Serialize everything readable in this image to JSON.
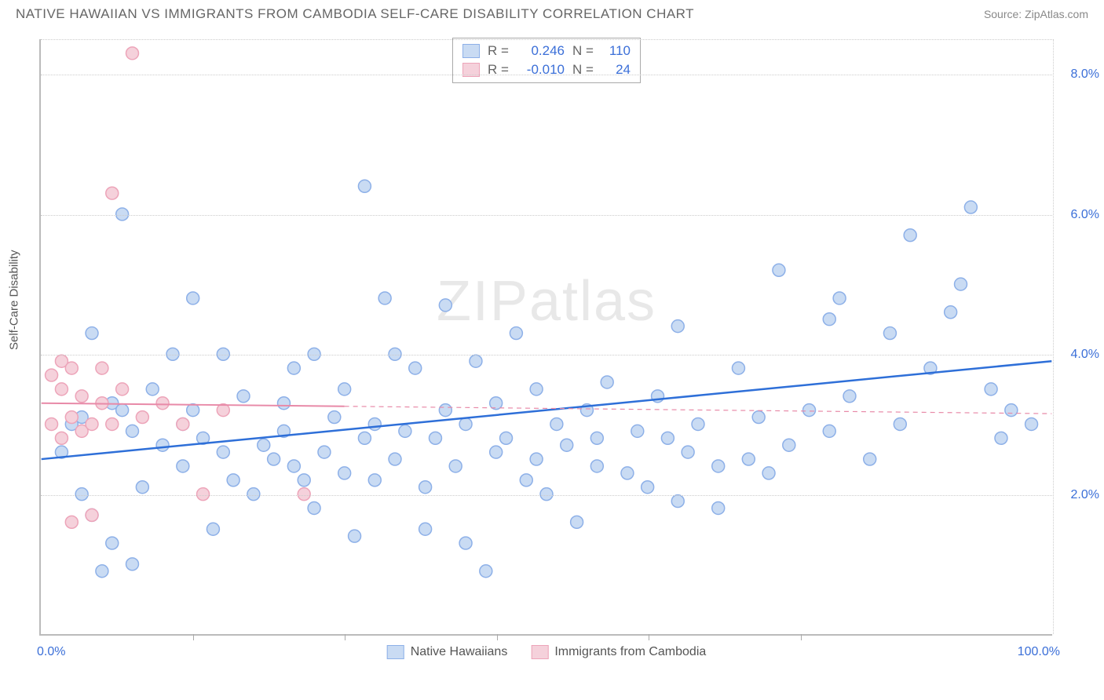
{
  "header": {
    "title": "NATIVE HAWAIIAN VS IMMIGRANTS FROM CAMBODIA SELF-CARE DISABILITY CORRELATION CHART",
    "source_label": "Source:",
    "source_name": "ZipAtlas.com"
  },
  "watermark": {
    "part1": "ZIP",
    "part2": "atlas"
  },
  "chart": {
    "type": "scatter",
    "ylabel": "Self-Care Disability",
    "xlim": [
      0,
      100
    ],
    "ylim": [
      0,
      8.5
    ],
    "xticks_label_left": "0.0%",
    "xticks_label_right": "100.0%",
    "yticks": [
      {
        "v": 2.0,
        "label": "2.0%"
      },
      {
        "v": 4.0,
        "label": "4.0%"
      },
      {
        "v": 6.0,
        "label": "6.0%"
      },
      {
        "v": 8.0,
        "label": "8.0%"
      }
    ],
    "vtick_positions": [
      15,
      30,
      45,
      60,
      75
    ],
    "grid_color": "#cccccc",
    "background_color": "#ffffff",
    "point_radius": 8,
    "series": [
      {
        "name": "Native Hawaiians",
        "fill": "#c9dbf3",
        "stroke": "#8db0e8",
        "line_color": "#2e6fd8",
        "line_width": 2.5,
        "regression": {
          "x1": 0,
          "y1": 2.5,
          "x2": 100,
          "y2": 3.9,
          "dash": null
        },
        "points": [
          [
            2,
            2.6
          ],
          [
            3,
            3.0
          ],
          [
            4,
            3.1
          ],
          [
            4,
            2.0
          ],
          [
            5,
            1.7
          ],
          [
            5,
            4.3
          ],
          [
            6,
            0.9
          ],
          [
            7,
            3.3
          ],
          [
            7,
            1.3
          ],
          [
            8,
            3.2
          ],
          [
            8,
            6.0
          ],
          [
            9,
            2.9
          ],
          [
            9,
            1.0
          ],
          [
            10,
            2.1
          ],
          [
            11,
            3.5
          ],
          [
            12,
            2.7
          ],
          [
            13,
            4.0
          ],
          [
            14,
            3.0
          ],
          [
            14,
            2.4
          ],
          [
            15,
            3.2
          ],
          [
            15,
            4.8
          ],
          [
            16,
            2.8
          ],
          [
            17,
            1.5
          ],
          [
            18,
            2.6
          ],
          [
            18,
            4.0
          ],
          [
            19,
            2.2
          ],
          [
            20,
            3.4
          ],
          [
            21,
            2.0
          ],
          [
            22,
            2.7
          ],
          [
            23,
            2.5
          ],
          [
            24,
            3.3
          ],
          [
            24,
            2.9
          ],
          [
            25,
            2.4
          ],
          [
            25,
            3.8
          ],
          [
            26,
            2.2
          ],
          [
            27,
            1.8
          ],
          [
            27,
            4.0
          ],
          [
            28,
            2.6
          ],
          [
            29,
            3.1
          ],
          [
            30,
            2.3
          ],
          [
            30,
            3.5
          ],
          [
            31,
            1.4
          ],
          [
            32,
            2.8
          ],
          [
            32,
            6.4
          ],
          [
            33,
            3.0
          ],
          [
            33,
            2.2
          ],
          [
            34,
            4.8
          ],
          [
            35,
            2.5
          ],
          [
            35,
            4.0
          ],
          [
            36,
            2.9
          ],
          [
            37,
            3.8
          ],
          [
            38,
            2.1
          ],
          [
            38,
            1.5
          ],
          [
            39,
            2.8
          ],
          [
            40,
            3.2
          ],
          [
            40,
            4.7
          ],
          [
            41,
            2.4
          ],
          [
            42,
            1.3
          ],
          [
            42,
            3.0
          ],
          [
            43,
            3.9
          ],
          [
            44,
            0.9
          ],
          [
            45,
            2.6
          ],
          [
            45,
            3.3
          ],
          [
            46,
            2.8
          ],
          [
            47,
            4.3
          ],
          [
            48,
            2.2
          ],
          [
            49,
            3.5
          ],
          [
            49,
            2.5
          ],
          [
            50,
            2.0
          ],
          [
            51,
            3.0
          ],
          [
            52,
            2.7
          ],
          [
            53,
            1.6
          ],
          [
            54,
            3.2
          ],
          [
            55,
            2.4
          ],
          [
            55,
            2.8
          ],
          [
            56,
            3.6
          ],
          [
            58,
            2.3
          ],
          [
            59,
            2.9
          ],
          [
            60,
            2.1
          ],
          [
            61,
            3.4
          ],
          [
            62,
            2.8
          ],
          [
            63,
            1.9
          ],
          [
            63,
            4.4
          ],
          [
            64,
            2.6
          ],
          [
            65,
            3.0
          ],
          [
            67,
            2.4
          ],
          [
            67,
            1.8
          ],
          [
            69,
            3.8
          ],
          [
            70,
            2.5
          ],
          [
            71,
            3.1
          ],
          [
            72,
            2.3
          ],
          [
            73,
            5.2
          ],
          [
            74,
            2.7
          ],
          [
            76,
            3.2
          ],
          [
            78,
            2.9
          ],
          [
            78,
            4.5
          ],
          [
            80,
            3.4
          ],
          [
            82,
            2.5
          ],
          [
            84,
            4.3
          ],
          [
            85,
            3.0
          ],
          [
            86,
            5.7
          ],
          [
            88,
            3.8
          ],
          [
            90,
            4.6
          ],
          [
            92,
            6.1
          ],
          [
            94,
            3.5
          ],
          [
            95,
            2.8
          ],
          [
            96,
            3.2
          ],
          [
            98,
            3.0
          ],
          [
            91,
            5.0
          ],
          [
            79,
            4.8
          ]
        ]
      },
      {
        "name": "Immigrants from Cambodia",
        "fill": "#f5d1db",
        "stroke": "#eda4b9",
        "line_color": "#e88aa8",
        "line_width": 2,
        "regression": {
          "x1": 0,
          "y1": 3.3,
          "x2": 100,
          "y2": 3.15,
          "dash": "6,5",
          "solid_until": 30
        },
        "points": [
          [
            1,
            3.0
          ],
          [
            1,
            3.7
          ],
          [
            2,
            2.8
          ],
          [
            2,
            3.5
          ],
          [
            2,
            3.9
          ],
          [
            3,
            3.1
          ],
          [
            3,
            1.6
          ],
          [
            3,
            3.8
          ],
          [
            4,
            2.9
          ],
          [
            4,
            3.4
          ],
          [
            5,
            3.0
          ],
          [
            5,
            1.7
          ],
          [
            6,
            3.3
          ],
          [
            6,
            3.8
          ],
          [
            7,
            6.3
          ],
          [
            7,
            3.0
          ],
          [
            8,
            3.5
          ],
          [
            9,
            8.3
          ],
          [
            10,
            3.1
          ],
          [
            12,
            3.3
          ],
          [
            14,
            3.0
          ],
          [
            16,
            2.0
          ],
          [
            18,
            3.2
          ],
          [
            26,
            2.0
          ]
        ]
      }
    ],
    "stats": [
      {
        "swatch_fill": "#c9dbf3",
        "swatch_stroke": "#8db0e8",
        "r": "0.246",
        "n": "110"
      },
      {
        "swatch_fill": "#f5d1db",
        "swatch_stroke": "#eda4b9",
        "r": "-0.010",
        "n": "24"
      }
    ],
    "bottom_legend": [
      {
        "swatch_fill": "#c9dbf3",
        "swatch_stroke": "#8db0e8",
        "label": "Native Hawaiians"
      },
      {
        "swatch_fill": "#f5d1db",
        "swatch_stroke": "#eda4b9",
        "label": "Immigrants from Cambodia"
      }
    ]
  }
}
